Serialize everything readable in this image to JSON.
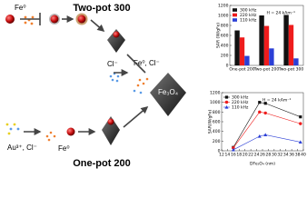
{
  "diagram": {
    "title_top": "Two-pot 300",
    "title_bottom": "One-pot 200",
    "fe0_top": "Fe⁰",
    "cl": "Cl⁻",
    "fe0_cl": "Fe⁰, Cl⁻",
    "au_cl": "Au³⁺, Cl⁻",
    "fe0_bottom": "Fe⁰",
    "product": "Fe₃O₄"
  },
  "chart_data": [
    {
      "type": "bar",
      "ylabel": "SAR (W/gFe)",
      "annotation": "H = 24 kAm⁻¹",
      "categories": [
        "One-pot 200",
        "Two-pot 200",
        "Two-pot 300"
      ],
      "series": [
        {
          "name": "300 kHz",
          "color": "#111111",
          "values": [
            700,
            1000,
            1010
          ]
        },
        {
          "name": "220 kHz",
          "color": "#ee1c1c",
          "values": [
            560,
            790,
            810
          ]
        },
        {
          "name": "110 kHz",
          "color": "#2b3fd6",
          "values": [
            190,
            340,
            140
          ]
        }
      ],
      "ylim": [
        0,
        1200
      ],
      "yticks": [
        0,
        200,
        400,
        600,
        800,
        1000,
        1200
      ],
      "legend": "upper left",
      "grid": false
    },
    {
      "type": "line",
      "ylabel": "SAR(W/gFe)",
      "xlabel": "DFe₃O₄ (nm)",
      "annotation": "H = 24 kAm⁻¹",
      "x": [
        16,
        25,
        27,
        39
      ],
      "series": [
        {
          "name": "300 kHz",
          "color": "#111111",
          "marker": "square",
          "values": [
            70,
            1000,
            980,
            700
          ]
        },
        {
          "name": "220 kHz",
          "color": "#ee1c1c",
          "marker": "circle",
          "values": [
            60,
            800,
            780,
            560
          ]
        },
        {
          "name": "110 kHz",
          "color": "#2b3fd6",
          "marker": "triangle",
          "values": [
            20,
            300,
            330,
            180
          ]
        }
      ],
      "xlim": [
        12,
        40
      ],
      "xticks": [
        12,
        14,
        16,
        18,
        20,
        22,
        24,
        26,
        28,
        30,
        32,
        34,
        36,
        38,
        40
      ],
      "ylim": [
        0,
        1200
      ],
      "yticks": [
        0,
        200,
        400,
        600,
        800,
        1000,
        1200
      ],
      "legend": "upper left",
      "grid": false
    }
  ]
}
